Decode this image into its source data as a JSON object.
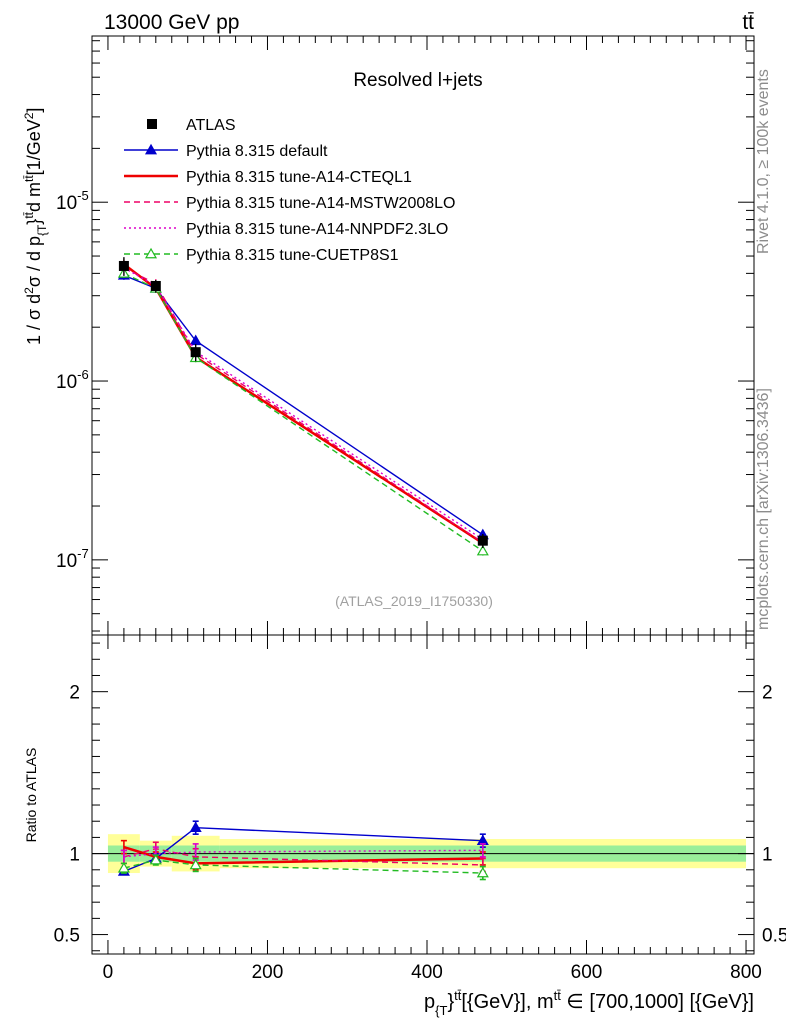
{
  "header": {
    "left": "13000 GeV pp",
    "right": "tt̄"
  },
  "side_labels": {
    "rivet": "Rivet 4.1.0, ≥ 100k events",
    "mcplots": "mcplots.cern.ch [arXiv:1306.3436]"
  },
  "chart_data": {
    "type": "line",
    "title": "Resolved l+jets",
    "watermark": "(ATLAS_2019_I1750330)",
    "ylabel": "1 / σ d²σ / d p_{T}^{tt̄} d m^{tt̄} [1/GeV²]",
    "xlabel": "p_{T}^{tt̄} [{GeV}], m^{tt̄} ∈ [700,1000] [{GeV}]",
    "ratio_ylabel": "Ratio to ATLAS",
    "xlim": [
      -20,
      810
    ],
    "ylim": [
      3.8e-08,
      8.5e-05
    ],
    "ratio_ylim": [
      0.38,
      2.35
    ],
    "y_scale": "log",
    "x_ticks": [
      0,
      200,
      400,
      600,
      800
    ],
    "x_tick_labels": [
      "0",
      "200",
      "400",
      "600",
      "800"
    ],
    "y_tick_labels": [
      "10^{-7}",
      "10^{-6}",
      "10^{-5}"
    ],
    "ratio_ticks": [
      0.5,
      1,
      2
    ],
    "ratio_tick_labels": [
      "0.5",
      "1",
      "2"
    ],
    "bins": [
      [
        0,
        40
      ],
      [
        40,
        80
      ],
      [
        80,
        140
      ],
      [
        140,
        800
      ]
    ],
    "x": [
      20,
      60,
      110,
      470
    ],
    "data": {
      "name": "ATLAS",
      "values": [
        4.4e-06,
        3.4e-06,
        1.45e-06,
        1.28e-07
      ],
      "rel_err_stat": [
        0.05,
        0.05,
        0.05,
        0.05
      ],
      "rel_err_total": [
        0.12,
        0.08,
        0.11,
        0.09
      ]
    },
    "series": [
      {
        "name": "Pythia 8.315 default",
        "color": "#0000cc",
        "style": "solid",
        "marker": "triangle",
        "values": [
          3.9e-06,
          3.3e-06,
          1.68e-06,
          1.38e-07
        ],
        "ratio": [
          0.89,
          0.97,
          1.16,
          1.08
        ],
        "ratio_err": [
          0.02,
          0.03,
          0.04,
          0.04
        ]
      },
      {
        "name": "Pythia 8.315 tune-A14-CTEQL1",
        "color": "#ee0000",
        "style": "solid",
        "marker": "none",
        "values": [
          4.5e-06,
          3.3e-06,
          1.36e-06,
          1.24e-07
        ],
        "ratio": [
          1.04,
          0.98,
          0.94,
          0.97
        ],
        "ratio_err": [
          0.04,
          0.03,
          0.04,
          0.04
        ]
      },
      {
        "name": "Pythia 8.315 tune-A14-MSTW2008LO",
        "color": "#ee0066",
        "style": "dashed",
        "marker": "none",
        "values": [
          4.3e-06,
          3.5e-06,
          1.42e-06,
          1.25e-07
        ],
        "ratio": [
          0.98,
          1.03,
          0.98,
          0.93
        ],
        "ratio_err": [
          0.04,
          0.04,
          0.05,
          0.04
        ]
      },
      {
        "name": "Pythia 8.315 tune-A14-NNPDF2.3LO",
        "color": "#dd00cc",
        "style": "dotted",
        "marker": "none",
        "values": [
          4.3e-06,
          3.4e-06,
          1.46e-06,
          1.3e-07
        ],
        "ratio": [
          0.98,
          1.0,
          1.01,
          1.02
        ],
        "ratio_err": [
          0.04,
          0.04,
          0.05,
          0.04
        ]
      },
      {
        "name": "Pythia 8.315 tune-CUETP8S1",
        "color": "#22bb22",
        "style": "dashed",
        "marker": "open-triangle",
        "values": [
          4e-06,
          3.3e-06,
          1.35e-06,
          1.12e-07
        ],
        "ratio": [
          0.91,
          0.96,
          0.93,
          0.88
        ],
        "ratio_err": [
          0.03,
          0.03,
          0.04,
          0.04
        ]
      }
    ]
  }
}
